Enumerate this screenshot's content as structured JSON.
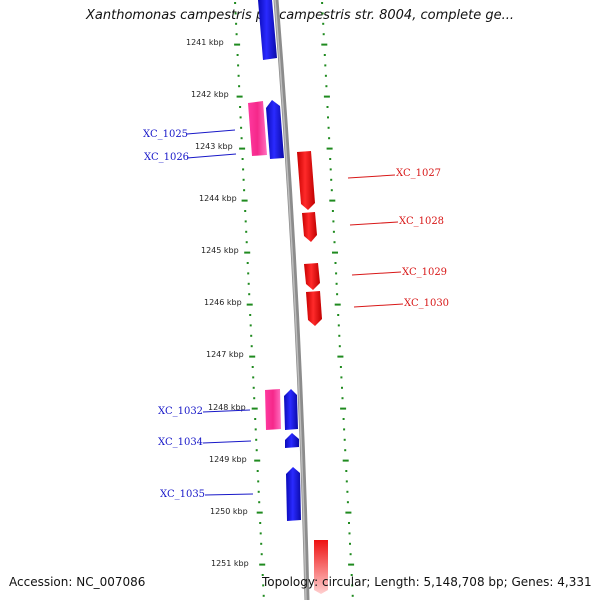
{
  "title": "Xanthomonas campestris pv. campestris str. 8004, complete ge...",
  "accession": "Accession: NC_007086",
  "topology": "Topology: circular; Length: 5,148,708 bp; Genes: 4,331",
  "colors": {
    "plus_strand": "#1010dd",
    "minus_strand": "#ee1111",
    "pink_feature": "#ee2d92",
    "backbone": "#8c8c8c",
    "tick": "#1f8a1f",
    "label_blue": "#1818c8",
    "label_red": "#d81818"
  },
  "ticks": [
    {
      "label": "1241 kbp"
    },
    {
      "label": "1242 kbp"
    },
    {
      "label": "1243 kbp"
    },
    {
      "label": "1244 kbp"
    },
    {
      "label": "1245 kbp"
    },
    {
      "label": "1246 kbp"
    },
    {
      "label": "1247 kbp"
    },
    {
      "label": "1248 kbp"
    },
    {
      "label": "1249 kbp"
    },
    {
      "label": "1250 kbp"
    },
    {
      "label": "1251 kbp"
    }
  ],
  "gene_labels": [
    {
      "name": "XC_1025",
      "strand": "left"
    },
    {
      "name": "XC_1026",
      "strand": "left"
    },
    {
      "name": "XC_1027",
      "strand": "right"
    },
    {
      "name": "XC_1028",
      "strand": "right"
    },
    {
      "name": "XC_1029",
      "strand": "right"
    },
    {
      "name": "XC_1030",
      "strand": "right"
    },
    {
      "name": "XC_1032",
      "strand": "left"
    },
    {
      "name": "XC_1034",
      "strand": "left"
    },
    {
      "name": "XC_1035",
      "strand": "left"
    }
  ]
}
